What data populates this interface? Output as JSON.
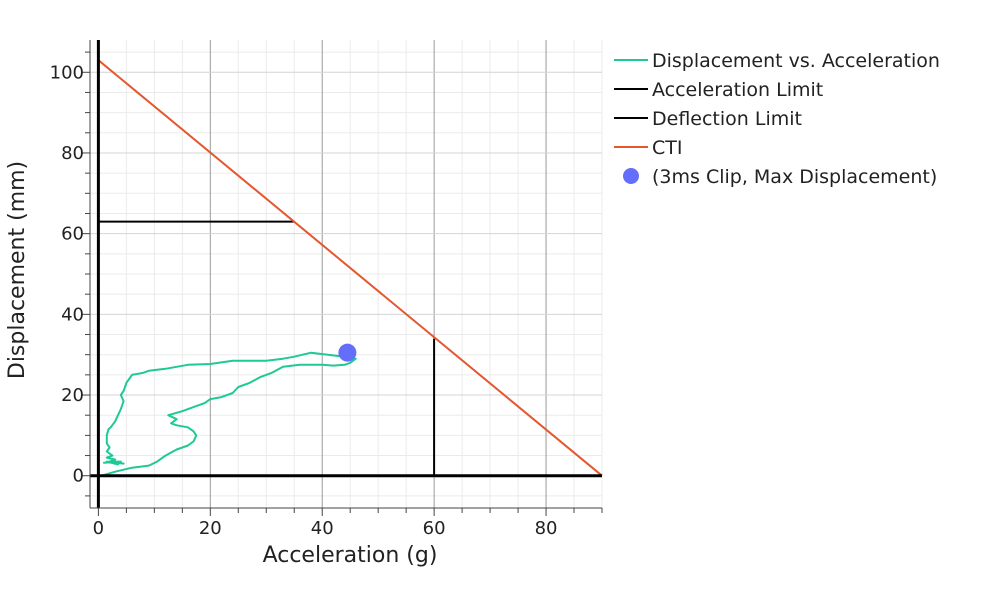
{
  "chart_data": {
    "type": "line",
    "title": "",
    "xlabel": "Acceleration (g)",
    "ylabel": "Displacement (mm)",
    "xlim": [
      -1.5,
      90
    ],
    "ylim": [
      -8,
      108
    ],
    "x_ticks": [
      0,
      20,
      40,
      60,
      80
    ],
    "y_ticks": [
      0,
      20,
      40,
      60,
      80,
      100
    ],
    "grid": true,
    "legend_position": "right",
    "series": [
      {
        "name": "Displacement vs. Acceleration",
        "type": "line",
        "color": "#1fc995",
        "x": [
          0.5,
          3,
          6,
          9,
          10.5,
          12,
          14,
          16,
          17,
          17.5,
          17,
          16,
          14,
          13,
          14,
          12.5,
          15,
          17,
          19,
          20,
          22,
          24,
          25,
          27,
          29,
          31,
          33,
          36,
          38,
          40,
          42,
          44,
          45,
          46,
          44,
          41,
          38,
          35,
          33,
          30,
          27,
          24,
          20,
          16,
          12,
          9,
          8,
          6,
          5,
          4.5,
          4,
          4.5,
          4,
          3.5,
          3,
          2.2,
          1.8,
          1.5,
          1.5,
          2,
          1.5,
          2.5,
          1.5,
          3,
          2,
          4,
          1,
          3,
          4.5,
          1.5,
          3.5,
          2.5
        ],
        "y": [
          0,
          1,
          2,
          2.5,
          3.5,
          5,
          6.5,
          7.5,
          8.5,
          10,
          11,
          12,
          12.5,
          13,
          14,
          15,
          16,
          17,
          18,
          19,
          19.5,
          20.5,
          22,
          23,
          24.5,
          25.5,
          27,
          27.5,
          27.5,
          27.5,
          27.3,
          27.5,
          28,
          29,
          29.5,
          30,
          30.5,
          29.5,
          29,
          28.5,
          28.5,
          28.5,
          27.7,
          27.5,
          26.5,
          26,
          25.5,
          25,
          23,
          21,
          20,
          18.5,
          16.5,
          15,
          13.5,
          12,
          11.5,
          10,
          8,
          7,
          6,
          5,
          4.5,
          4,
          3.5,
          3.5,
          3.2,
          3.4,
          3,
          3.5,
          2.8,
          3.2
        ]
      },
      {
        "name": "Acceleration Limit",
        "type": "line",
        "color": "#000000",
        "x": [
          60,
          60,
          0
        ],
        "y": [
          34,
          0,
          0
        ]
      },
      {
        "name": "Deflection Limit",
        "type": "line",
        "color": "#000000",
        "x": [
          0,
          35
        ],
        "y": [
          63,
          63
        ]
      },
      {
        "name": "CTI",
        "type": "line",
        "color": "#e4572e",
        "x": [
          0,
          90
        ],
        "y": [
          103,
          0
        ]
      },
      {
        "name": "(3ms Clip, Max Displacement)",
        "type": "scatter",
        "color": "#636efa",
        "x": [
          44.5
        ],
        "y": [
          30.5
        ]
      }
    ]
  }
}
